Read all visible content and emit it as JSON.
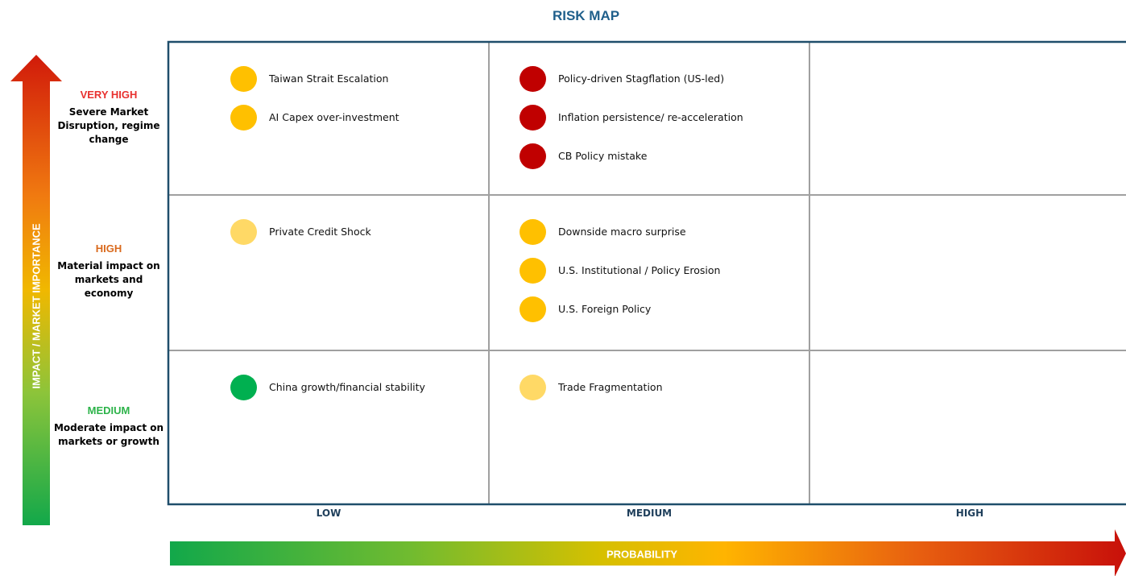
{
  "title": "RISK MAP",
  "y_axis_label": "IMPACT / MARKET IMPORTANCE",
  "x_axis_label": "PROBABILITY",
  "columns": [
    "LOW",
    "MEDIUM",
    "HIGH"
  ],
  "rows": [
    {
      "level": "VERY HIGH",
      "level_color": "#e8312f",
      "description": "Severe Market Disruption, regime change",
      "cells": [
        [
          {
            "label": "Taiwan Strait Escalation",
            "color": "#ffc000"
          },
          {
            "label": "AI Capex over-investment",
            "color": "#ffc000"
          }
        ],
        [
          {
            "label": "Policy-driven Stagflation (US-led)",
            "color": "#c00000"
          },
          {
            "label": "Inflation persistence/ re-acceleration",
            "color": "#c00000"
          },
          {
            "label": "CB Policy mistake",
            "color": "#c00000"
          }
        ],
        []
      ]
    },
    {
      "level": "HIGH",
      "level_color": "#d9691c",
      "description": "Material impact on markets and economy",
      "cells": [
        [
          {
            "label": "Private Credit Shock",
            "color": "#ffd966"
          }
        ],
        [
          {
            "label": "Downside macro surprise",
            "color": "#ffc000"
          },
          {
            "label": "U.S. Institutional / Policy Erosion",
            "color": "#ffc000"
          },
          {
            "label": "U.S. Foreign Policy",
            "color": "#ffc000"
          }
        ],
        []
      ]
    },
    {
      "level": "MEDIUM",
      "level_color": "#2db34a",
      "description": "Moderate impact on markets or growth",
      "cells": [
        [
          {
            "label": "China growth/financial stability",
            "color": "#00b050"
          }
        ],
        [
          {
            "label": "Trade Fragmentation",
            "color": "#ffd966"
          }
        ],
        []
      ]
    }
  ]
}
